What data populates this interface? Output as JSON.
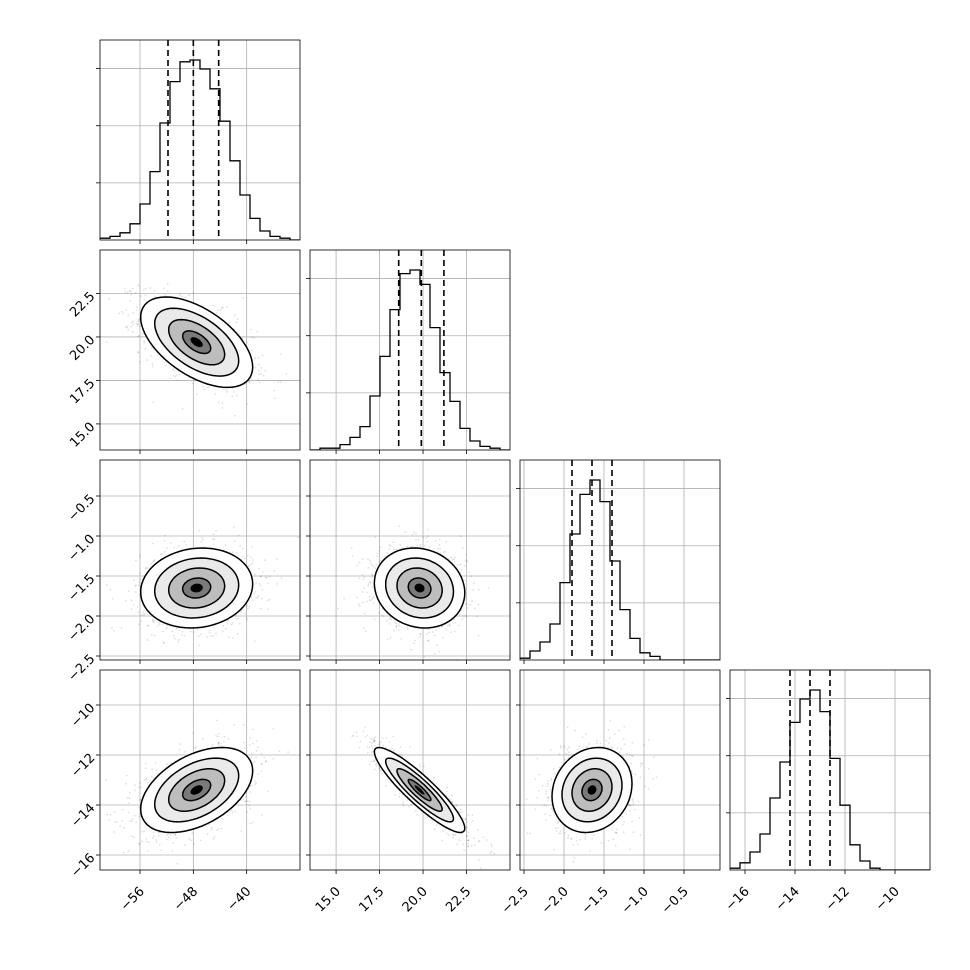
{
  "chart_data": {
    "type": "corner",
    "description_note": "",
    "parameters": [
      {
        "range": [
          -62,
          -32
        ],
        "ticks": [
          -56,
          -48,
          -40
        ],
        "tick_labels": [
          "−56",
          "−48",
          "−40"
        ]
      },
      {
        "range": [
          13.5,
          25.0
        ],
        "ticks": [
          15.0,
          17.5,
          20.0,
          22.5
        ],
        "tick_labels": [
          "15.0",
          "17.5",
          "20.0",
          "22.5"
        ]
      },
      {
        "range": [
          -2.55,
          -0.05
        ],
        "ticks": [
          -2.5,
          -2.0,
          -1.5,
          -1.0,
          -0.5
        ],
        "tick_labels": [
          "−2.5",
          "−2.0",
          "−1.5",
          "−1.0",
          "−0.5"
        ]
      },
      {
        "range": [
          -16.6,
          -8.6
        ],
        "ticks": [
          -16,
          -14,
          -12,
          -10
        ],
        "tick_labels": [
          "−16",
          "−14",
          "−12",
          "−10"
        ]
      }
    ],
    "diagonal_histograms": [
      {
        "quantiles": [
          -51.8,
          -48.0,
          -44.2
        ],
        "bin_edges": [
          -62,
          -60.5,
          -59,
          -57.5,
          -56,
          -54.5,
          -53,
          -51.5,
          -50,
          -48.5,
          -47,
          -45.5,
          -44,
          -42.5,
          -41,
          -39.5,
          -38,
          -36.5,
          -35,
          -33.5,
          -32
        ],
        "counts": [
          1,
          2,
          4,
          9,
          20,
          38,
          65,
          88,
          99,
          100,
          95,
          84,
          66,
          44,
          25,
          12,
          5,
          2,
          1,
          0
        ]
      },
      {
        "quantiles": [
          18.6,
          19.9,
          21.2
        ],
        "bin_edges": [
          13.5,
          14.075,
          14.65,
          15.225,
          15.8,
          16.375,
          16.95,
          17.525,
          18.1,
          18.675,
          19.25,
          19.825,
          20.4,
          20.975,
          21.55,
          22.125,
          22.7,
          23.275,
          23.85,
          24.425,
          25.0
        ],
        "counts": [
          0,
          1,
          1,
          3,
          7,
          13,
          30,
          52,
          78,
          98,
          100,
          92,
          68,
          43,
          27,
          12,
          5,
          2,
          1,
          0
        ]
      },
      {
        "quantiles": [
          -1.9,
          -1.65,
          -1.4
        ],
        "bin_edges": [
          -2.55,
          -2.425,
          -2.3,
          -2.175,
          -2.05,
          -1.925,
          -1.8,
          -1.675,
          -1.55,
          -1.425,
          -1.3,
          -1.175,
          -1.05,
          -0.925,
          -0.8,
          -0.675,
          -0.55,
          -0.425,
          -0.3,
          -0.175,
          -0.05
        ],
        "counts": [
          1,
          5,
          10,
          20,
          43,
          70,
          92,
          100,
          88,
          55,
          28,
          12,
          4,
          2,
          0,
          0,
          0,
          0,
          0,
          0
        ]
      },
      {
        "quantiles": [
          -14.2,
          -13.4,
          -12.6
        ],
        "bin_edges": [
          -16.6,
          -16.2,
          -15.8,
          -15.4,
          -15.0,
          -14.6,
          -14.2,
          -13.8,
          -13.4,
          -13.0,
          -12.6,
          -12.2,
          -11.8,
          -11.4,
          -11.0,
          -10.6,
          -10.2,
          -9.8,
          -9.4,
          -9.0,
          -8.6
        ],
        "counts": [
          1,
          4,
          10,
          20,
          40,
          60,
          82,
          95,
          100,
          88,
          62,
          36,
          14,
          5,
          1,
          0,
          0,
          0,
          0,
          0
        ]
      }
    ],
    "pair_panels": [
      {
        "row": 1,
        "col": 0,
        "mean": [
          -47.5,
          19.7
        ],
        "sd": [
          4.2,
          1.3
        ],
        "corr": -0.55
      },
      {
        "row": 2,
        "col": 0,
        "mean": [
          -47.5,
          -1.65
        ],
        "sd": [
          4.2,
          0.25
        ],
        "corr": 0.1
      },
      {
        "row": 2,
        "col": 1,
        "mean": [
          19.8,
          -1.65
        ],
        "sd": [
          1.3,
          0.25
        ],
        "corr": -0.12
      },
      {
        "row": 3,
        "col": 0,
        "mean": [
          -47.5,
          -13.4
        ],
        "sd": [
          4.2,
          0.85
        ],
        "corr": 0.45
      },
      {
        "row": 3,
        "col": 1,
        "mean": [
          19.8,
          -13.4
        ],
        "sd": [
          1.3,
          0.85
        ],
        "corr": -0.9
      },
      {
        "row": 3,
        "col": 2,
        "mean": [
          -1.65,
          -13.4
        ],
        "sd": [
          0.25,
          0.85
        ],
        "corr": 0.15
      }
    ],
    "contour_levels_sigma": [
      0.5,
      1.0,
      1.5,
      2.0
    ],
    "grid": true,
    "colors": {
      "line": "#000000",
      "grid": "#b0b0b0",
      "points": "#000000",
      "density": "#000000"
    }
  }
}
